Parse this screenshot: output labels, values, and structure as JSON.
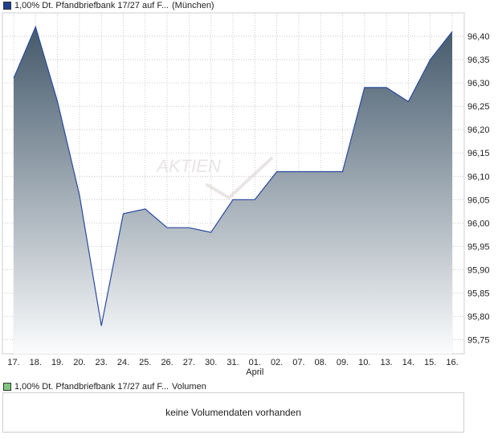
{
  "price_legend": {
    "name": "1,00% Dt. Pfandbriefbank 17/27 auf F...",
    "exchange": "(München)",
    "swatch_color": "#1f3f8f"
  },
  "volume_legend": {
    "name": "1,00% Dt. Pfandbriefbank 17/27 auf F...",
    "label": "Volumen",
    "swatch_color": "#7ec87e"
  },
  "watermark": "AKTIEN",
  "volume_panel": {
    "message": "keine Volumendaten vorhanden"
  },
  "chart_data": {
    "type": "area",
    "categories": [
      "17.",
      "18.",
      "19.",
      "20.",
      "23.",
      "24.",
      "25.",
      "26.",
      "27.",
      "30.",
      "31.",
      "01.",
      "02.",
      "07.",
      "08.",
      "09.",
      "10.",
      "13.",
      "14.",
      "15.",
      "16."
    ],
    "x_sublabel": {
      "under": "01.",
      "text": "April"
    },
    "series": [
      {
        "values": [
          96.31,
          96.42,
          96.26,
          96.06,
          95.78,
          96.02,
          96.03,
          95.99,
          95.99,
          95.98,
          96.05,
          96.05,
          96.11,
          96.11,
          96.11,
          96.11,
          96.29,
          96.29,
          96.26,
          96.35,
          96.41
        ]
      }
    ],
    "yticks": [
      "95,75",
      "95,80",
      "95,85",
      "95,90",
      "95,95",
      "96,00",
      "96,05",
      "96,10",
      "96,15",
      "96,20",
      "96,25",
      "96,30",
      "96,35",
      "96,40"
    ],
    "ylim": [
      95.72,
      96.45
    ],
    "grid": true,
    "y_axis_side": "right",
    "colors": {
      "line": "#2a4aa0",
      "fill_top": "#44596b",
      "fill_bottom": "#fbfcfd",
      "grid": "#bdbdbd"
    }
  }
}
